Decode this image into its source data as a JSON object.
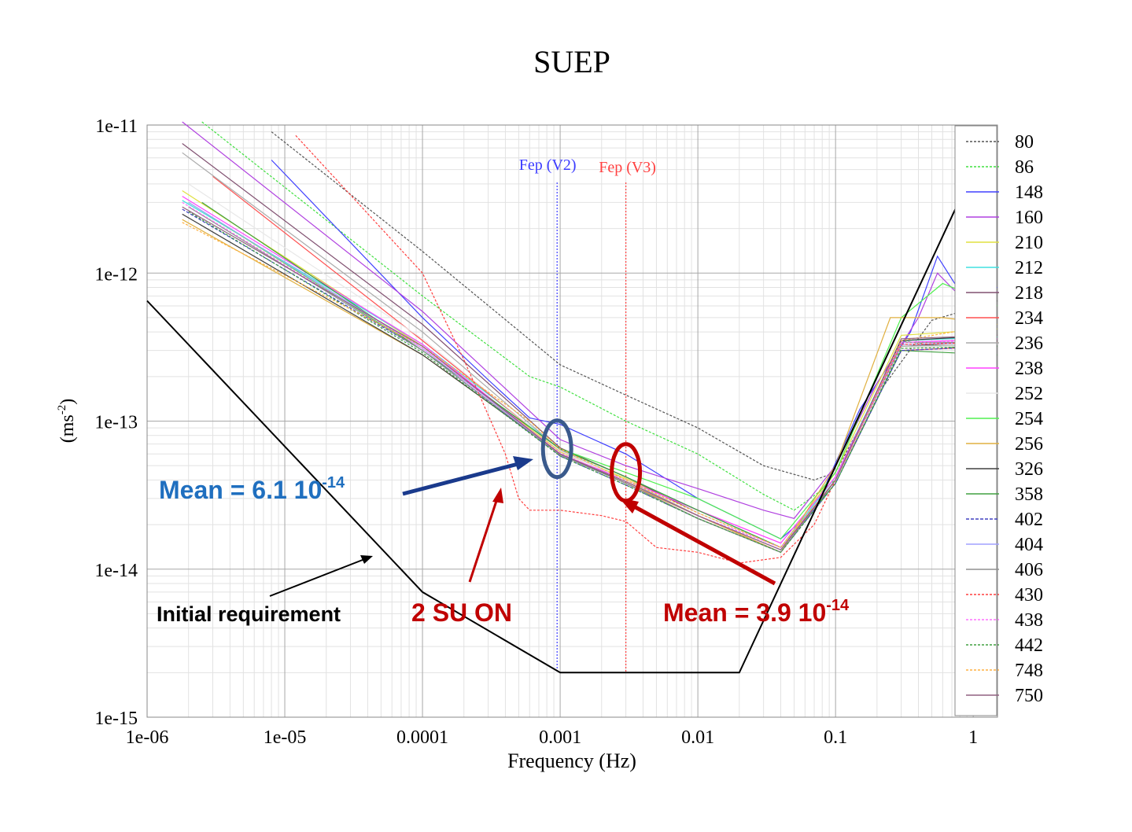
{
  "chart_data": {
    "type": "line",
    "title": "SUEP",
    "xlabel": "Frequency (Hz)",
    "ylabel_main": "(ms",
    "ylabel_exp": "-2",
    "ylabel_close": ")",
    "xscale": "log",
    "yscale": "log",
    "xlim": [
      1e-06,
      1.5
    ],
    "ylim": [
      1e-15,
      1e-11
    ],
    "grid": true,
    "legend_position": "right",
    "x_ticks": [
      {
        "v": 1e-06,
        "label": "1e-06"
      },
      {
        "v": 1e-05,
        "label": "1e-05"
      },
      {
        "v": 0.0001,
        "label": "0.0001"
      },
      {
        "v": 0.001,
        "label": "0.001"
      },
      {
        "v": 0.01,
        "label": "0.01"
      },
      {
        "v": 0.1,
        "label": "0.1"
      },
      {
        "v": 1,
        "label": "1"
      }
    ],
    "y_ticks": [
      {
        "v": 1e-11,
        "label": "1e-11"
      },
      {
        "v": 1e-12,
        "label": "1e-12"
      },
      {
        "v": 1e-13,
        "label": "1e-13"
      },
      {
        "v": 1e-14,
        "label": "1e-14"
      },
      {
        "v": 1e-15,
        "label": "1e-15"
      }
    ],
    "vlines": [
      {
        "x": 0.00095,
        "label": "Fep (V2)",
        "color": "#3b3bff"
      },
      {
        "x": 0.003,
        "label": "Fep (V3)",
        "color": "#ff4040"
      }
    ],
    "requirement": {
      "name": "Initial requirement",
      "color": "#000000",
      "points": [
        [
          1e-06,
          6.5e-13
        ],
        [
          0.0001,
          7e-15
        ],
        [
          0.001,
          2e-15
        ],
        [
          0.02,
          2e-15
        ],
        [
          1.15,
          6.5e-12
        ]
      ]
    },
    "series": [
      {
        "name": "80",
        "color": "#555555",
        "dash": "3,2",
        "points": [
          [
            8e-06,
            9e-12
          ],
          [
            0.0001,
            1.4e-12
          ],
          [
            0.001,
            2.4e-13
          ],
          [
            0.003,
            1.5e-13
          ],
          [
            0.01,
            9e-14
          ],
          [
            0.03,
            5e-14
          ],
          [
            0.07,
            4e-14
          ],
          [
            0.1,
            4.5e-14
          ],
          [
            0.2,
            1.5e-13
          ],
          [
            0.5,
            4.8e-13
          ],
          [
            1.5,
            6.5e-13
          ]
        ]
      },
      {
        "name": "86",
        "color": "#40e040",
        "dash": "3,2",
        "points": [
          [
            2.5e-06,
            1.05e-11
          ],
          [
            0.0001,
            7e-13
          ],
          [
            0.0006,
            2e-13
          ],
          [
            0.001,
            1.7e-13
          ],
          [
            0.003,
            1e-13
          ],
          [
            0.01,
            6e-14
          ],
          [
            0.03,
            3.2e-14
          ],
          [
            0.05,
            2.5e-14
          ],
          [
            0.1,
            4e-14
          ],
          [
            0.3,
            3.5e-13
          ],
          [
            0.6,
            3.2e-13
          ],
          [
            1.5,
            3e-13
          ]
        ]
      },
      {
        "name": "148",
        "color": "#4040ff",
        "dash": "",
        "points": [
          [
            8e-06,
            5.8e-12
          ],
          [
            0.0001,
            5e-13
          ],
          [
            0.0003,
            1.9e-13
          ],
          [
            0.0006,
            1.05e-13
          ],
          [
            0.001,
            9.5e-14
          ],
          [
            0.003,
            6e-14
          ],
          [
            0.01,
            3e-14
          ],
          [
            0.04,
            1.6e-14
          ],
          [
            0.07,
            2.5e-14
          ],
          [
            0.15,
            1.2e-13
          ],
          [
            0.35,
            4e-13
          ],
          [
            0.55,
            1.3e-12
          ],
          [
            0.8,
            7.5e-13
          ],
          [
            1.5,
            8e-13
          ]
        ]
      },
      {
        "name": "160",
        "color": "#b040e0",
        "dash": "",
        "points": [
          [
            1.8e-06,
            1.05e-11
          ],
          [
            0.0001,
            5.5e-13
          ],
          [
            0.001,
            7.5e-14
          ],
          [
            0.003,
            5e-14
          ],
          [
            0.01,
            3.5e-14
          ],
          [
            0.03,
            2.5e-14
          ],
          [
            0.05,
            2.2e-14
          ],
          [
            0.1,
            5e-14
          ],
          [
            0.2,
            1.8e-13
          ],
          [
            0.4,
            5e-13
          ],
          [
            0.55,
            1e-12
          ],
          [
            0.8,
            7e-13
          ],
          [
            1.5,
            7.5e-13
          ]
        ]
      },
      {
        "name": "210",
        "color": "#e0e040",
        "dash": "",
        "points": [
          [
            1.8e-06,
            3.6e-12
          ],
          [
            0.0001,
            3.2e-13
          ],
          [
            0.001,
            6.2e-14
          ],
          [
            0.003,
            4.1e-14
          ],
          [
            0.01,
            2.5e-14
          ],
          [
            0.04,
            1.4e-14
          ],
          [
            0.1,
            4.5e-14
          ],
          [
            0.3,
            3.8e-13
          ],
          [
            1.5,
            4.2e-13
          ]
        ]
      },
      {
        "name": "212",
        "color": "#40e0e0",
        "dash": "",
        "points": [
          [
            1.8e-06,
            3.1e-12
          ],
          [
            0.0001,
            3.3e-13
          ],
          [
            0.001,
            6.5e-14
          ],
          [
            0.003,
            4.2e-14
          ],
          [
            0.01,
            2.5e-14
          ],
          [
            0.04,
            1.4e-14
          ],
          [
            0.1,
            4.2e-14
          ],
          [
            0.3,
            3.5e-13
          ],
          [
            1.5,
            3.7e-13
          ]
        ]
      },
      {
        "name": "218",
        "color": "#805070",
        "dash": "",
        "points": [
          [
            1.8e-06,
            7.5e-12
          ],
          [
            0.0001,
            4.5e-13
          ],
          [
            0.001,
            6.6e-14
          ],
          [
            0.003,
            4.2e-14
          ],
          [
            0.01,
            2.4e-14
          ],
          [
            0.04,
            1.4e-14
          ],
          [
            0.1,
            4e-14
          ],
          [
            0.3,
            3.2e-13
          ],
          [
            1.5,
            3.5e-13
          ]
        ]
      },
      {
        "name": "234",
        "color": "#ff5050",
        "dash": "",
        "points": [
          [
            3e-06,
            4.5e-12
          ],
          [
            0.0001,
            3.5e-13
          ],
          [
            0.001,
            6.3e-14
          ],
          [
            0.003,
            4e-14
          ],
          [
            0.01,
            2.3e-14
          ],
          [
            0.04,
            1.3e-14
          ],
          [
            0.1,
            4e-14
          ],
          [
            0.3,
            3e-13
          ],
          [
            1.5,
            3.2e-13
          ]
        ]
      },
      {
        "name": "236",
        "color": "#aaaaaa",
        "dash": "",
        "points": [
          [
            1.8e-06,
            6.5e-12
          ],
          [
            0.0001,
            4e-13
          ],
          [
            0.001,
            6.4e-14
          ],
          [
            0.003,
            4e-14
          ],
          [
            0.01,
            2.3e-14
          ],
          [
            0.04,
            1.35e-14
          ],
          [
            0.1,
            4e-14
          ],
          [
            0.3,
            3.2e-13
          ],
          [
            1.5,
            3.3e-13
          ]
        ]
      },
      {
        "name": "238",
        "color": "#ff40ff",
        "dash": "",
        "points": [
          [
            1.8e-06,
            3.3e-12
          ],
          [
            0.0001,
            3.3e-13
          ],
          [
            0.001,
            6e-14
          ],
          [
            0.003,
            4e-14
          ],
          [
            0.01,
            2.5e-14
          ],
          [
            0.04,
            1.5e-14
          ],
          [
            0.1,
            4.2e-14
          ],
          [
            0.3,
            3.4e-13
          ],
          [
            1.5,
            3.6e-13
          ]
        ]
      },
      {
        "name": "252",
        "color": "#e8e8e8",
        "dash": "",
        "points": [
          [
            2e-06,
            4e-12
          ],
          [
            0.0001,
            3.6e-13
          ],
          [
            0.001,
            6.3e-14
          ],
          [
            0.003,
            4e-14
          ],
          [
            0.01,
            2.4e-14
          ],
          [
            0.04,
            1.4e-14
          ],
          [
            0.1,
            4e-14
          ],
          [
            0.3,
            3.1e-13
          ],
          [
            1.5,
            3.3e-13
          ]
        ]
      },
      {
        "name": "254",
        "color": "#50f050",
        "dash": "",
        "points": [
          [
            2e-06,
            3e-12
          ],
          [
            0.0001,
            3e-13
          ],
          [
            0.001,
            6.5e-14
          ],
          [
            0.003,
            4.5e-14
          ],
          [
            0.01,
            3e-14
          ],
          [
            0.04,
            1.6e-14
          ],
          [
            0.1,
            4.5e-14
          ],
          [
            0.3,
            5e-13
          ],
          [
            0.6,
            8.5e-13
          ],
          [
            1.5,
            6e-13
          ]
        ]
      },
      {
        "name": "256",
        "color": "#e0b040",
        "dash": "",
        "points": [
          [
            1.8e-06,
            2.3e-12
          ],
          [
            0.0001,
            2.8e-13
          ],
          [
            0.001,
            6e-14
          ],
          [
            0.003,
            3.8e-14
          ],
          [
            0.01,
            2.3e-14
          ],
          [
            0.04,
            1.3e-14
          ],
          [
            0.1,
            5e-14
          ],
          [
            0.25,
            5e-13
          ],
          [
            0.6,
            5e-13
          ],
          [
            1.5,
            4.5e-13
          ]
        ]
      },
      {
        "name": "326",
        "color": "#404040",
        "dash": "",
        "points": [
          [
            1.8e-06,
            2.5e-12
          ],
          [
            0.0001,
            2.8e-13
          ],
          [
            0.001,
            6e-14
          ],
          [
            0.003,
            3.8e-14
          ],
          [
            0.01,
            2.2e-14
          ],
          [
            0.04,
            1.3e-14
          ],
          [
            0.1,
            4e-14
          ],
          [
            0.3,
            3.5e-13
          ],
          [
            1.5,
            3.8e-13
          ]
        ]
      },
      {
        "name": "358",
        "color": "#40a040",
        "dash": "",
        "points": [
          [
            2.5e-06,
            3e-12
          ],
          [
            0.0001,
            3e-13
          ],
          [
            0.001,
            6.5e-14
          ],
          [
            0.003,
            4.2e-14
          ],
          [
            0.01,
            2.5e-14
          ],
          [
            0.04,
            1.4e-14
          ],
          [
            0.1,
            3.8e-14
          ],
          [
            0.3,
            3e-13
          ],
          [
            1.5,
            2.8e-13
          ]
        ]
      },
      {
        "name": "402",
        "color": "#4040c0",
        "dash": "4,2",
        "points": [
          [
            1.8e-06,
            2.7e-12
          ],
          [
            0.0001,
            3e-13
          ],
          [
            0.001,
            5.8e-14
          ],
          [
            0.003,
            3.7e-14
          ],
          [
            0.01,
            2.2e-14
          ],
          [
            0.04,
            1.3e-14
          ],
          [
            0.1,
            3.8e-14
          ],
          [
            0.3,
            3e-13
          ],
          [
            1.5,
            3.2e-13
          ]
        ]
      },
      {
        "name": "404",
        "color": "#a0a0ff",
        "dash": "",
        "points": [
          [
            2e-06,
            3e-12
          ],
          [
            0.0001,
            3.1e-13
          ],
          [
            0.001,
            6e-14
          ],
          [
            0.003,
            3.9e-14
          ],
          [
            0.01,
            2.3e-14
          ],
          [
            0.04,
            1.35e-14
          ],
          [
            0.1,
            4e-14
          ],
          [
            0.3,
            3.3e-13
          ],
          [
            1.5,
            3.4e-13
          ]
        ]
      },
      {
        "name": "406",
        "color": "#909090",
        "dash": "",
        "points": [
          [
            2e-06,
            2.8e-12
          ],
          [
            0.0001,
            3e-13
          ],
          [
            0.001,
            5.9e-14
          ],
          [
            0.003,
            3.8e-14
          ],
          [
            0.01,
            2.2e-14
          ],
          [
            0.04,
            1.3e-14
          ],
          [
            0.1,
            4e-14
          ],
          [
            0.3,
            3.4e-13
          ],
          [
            1.5,
            3.4e-13
          ]
        ]
      },
      {
        "name": "430",
        "color": "#ff4040",
        "dash": "3,2",
        "points": [
          [
            1.2e-05,
            8.5e-12
          ],
          [
            0.0001,
            1e-12
          ],
          [
            0.0002,
            2.6e-13
          ],
          [
            0.0003,
            1.1e-13
          ],
          [
            0.0004,
            6e-14
          ],
          [
            0.0005,
            3e-14
          ],
          [
            0.0006,
            2.5e-14
          ],
          [
            0.001,
            2.5e-14
          ],
          [
            0.002,
            2.3e-14
          ],
          [
            0.003,
            2.1e-14
          ],
          [
            0.005,
            1.4e-14
          ],
          [
            0.01,
            1.3e-14
          ],
          [
            0.02,
            1.1e-14
          ],
          [
            0.04,
            1.2e-14
          ],
          [
            0.07,
            2e-14
          ],
          [
            0.1,
            4e-14
          ],
          [
            0.3,
            3.3e-13
          ],
          [
            1.5,
            3.4e-13
          ]
        ]
      },
      {
        "name": "438",
        "color": "#ff70ff",
        "dash": "3,2",
        "points": [
          [
            1.8e-06,
            3e-12
          ],
          [
            0.0001,
            3.1e-13
          ],
          [
            0.001,
            6.1e-14
          ],
          [
            0.003,
            3.9e-14
          ],
          [
            0.01,
            2.3e-14
          ],
          [
            0.04,
            1.4e-14
          ],
          [
            0.1,
            4e-14
          ],
          [
            0.3,
            3.4e-13
          ],
          [
            1.5,
            3.5e-13
          ]
        ]
      },
      {
        "name": "442",
        "color": "#40a040",
        "dash": "3,2",
        "points": [
          [
            2e-06,
            2.6e-12
          ],
          [
            0.0001,
            2.9e-13
          ],
          [
            0.001,
            5.8e-14
          ],
          [
            0.003,
            3.7e-14
          ],
          [
            0.01,
            2.2e-14
          ],
          [
            0.04,
            1.3e-14
          ],
          [
            0.1,
            3.8e-14
          ],
          [
            0.3,
            3.1e-13
          ],
          [
            1.5,
            3.2e-13
          ]
        ]
      },
      {
        "name": "748",
        "color": "#ffb040",
        "dash": "3,2",
        "points": [
          [
            1.8e-06,
            2.2e-12
          ],
          [
            0.0001,
            3.2e-13
          ],
          [
            0.0006,
            1e-13
          ],
          [
            0.001,
            6.5e-14
          ],
          [
            0.003,
            4e-14
          ],
          [
            0.01,
            2.4e-14
          ],
          [
            0.04,
            1.4e-14
          ],
          [
            0.1,
            4e-14
          ],
          [
            0.3,
            3.5e-13
          ],
          [
            1.5,
            4.5e-13
          ]
        ]
      },
      {
        "name": "750",
        "color": "#906080",
        "dash": "",
        "points": [
          [
            1.8e-06,
            2.8e-12
          ],
          [
            0.0001,
            3.2e-13
          ],
          [
            0.001,
            6e-14
          ],
          [
            0.003,
            3.9e-14
          ],
          [
            0.01,
            2.3e-14
          ],
          [
            0.04,
            1.35e-14
          ],
          [
            0.1,
            4e-14
          ],
          [
            0.3,
            3.6e-13
          ],
          [
            1.5,
            3.8e-13
          ]
        ]
      }
    ],
    "annotations": {
      "mean_v2": {
        "text": "Mean = 6.1 10",
        "exp": "-14",
        "color": "#1f6fbf",
        "ellipse_color": "#3a5a8c",
        "x": 0.00095,
        "y": 6.5e-14
      },
      "mean_v3": {
        "text": "Mean = 3.9 10",
        "exp": "-14",
        "color": "#c00000",
        "ellipse_color": "#c00000",
        "x": 0.003,
        "y": 4.5e-14
      },
      "su_on": {
        "text": "2 SU ON",
        "color": "#c00000",
        "x": 0.0006,
        "y": 3e-14
      },
      "requirement_label": {
        "text": "Initial requirement",
        "color": "#000000",
        "x": 5e-05,
        "y": 1.2e-14
      }
    }
  }
}
